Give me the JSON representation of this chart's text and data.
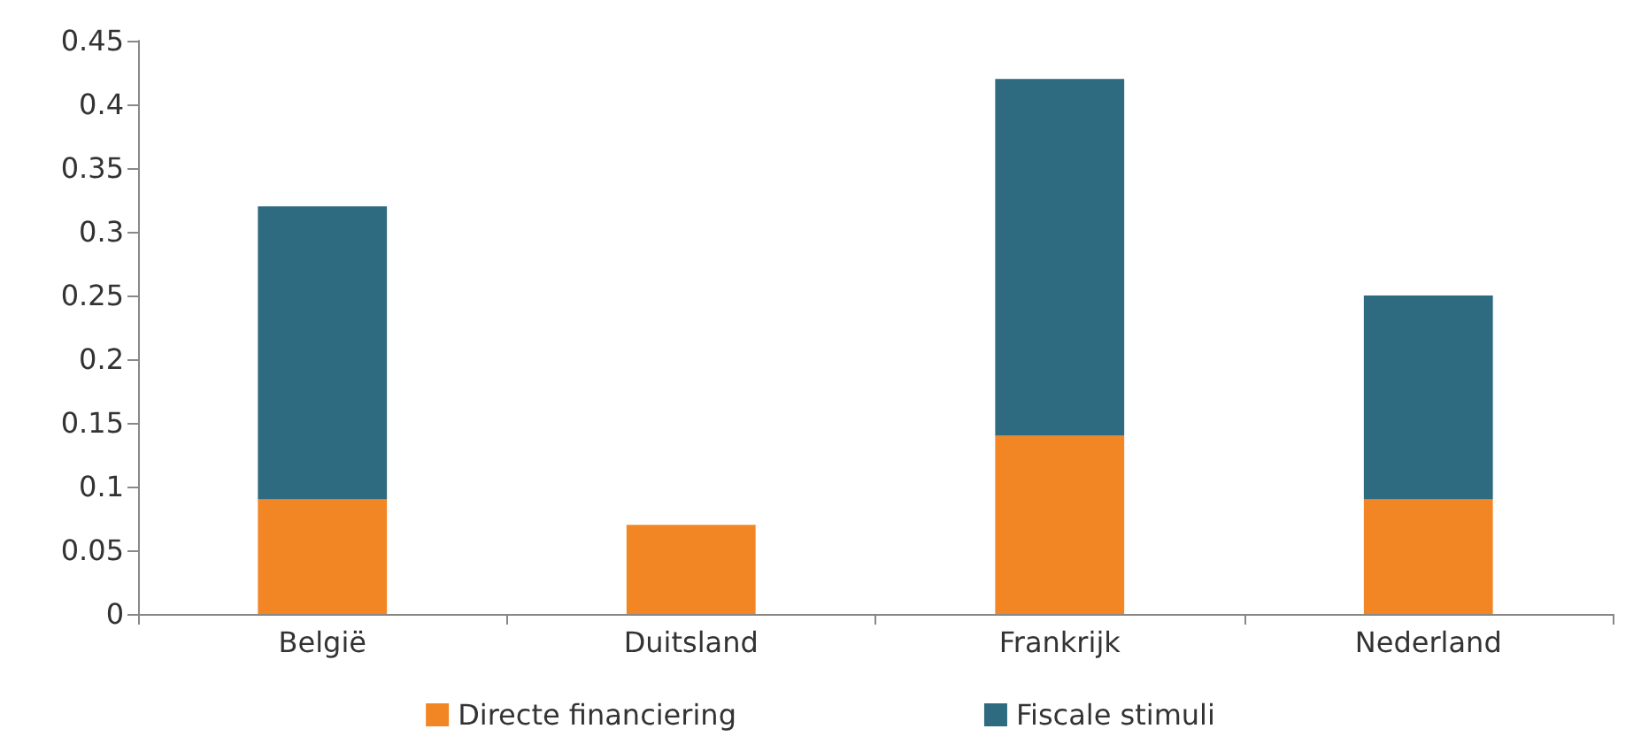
{
  "chart_data": {
    "type": "bar",
    "stacked": true,
    "categories": [
      "België",
      "Duitsland",
      "Frankrijk",
      "Nederland"
    ],
    "series": [
      {
        "name": "Directe financiering",
        "color": "#f28524",
        "values": [
          0.09,
          0.07,
          0.14,
          0.09
        ]
      },
      {
        "name": "Fiscale stimuli",
        "color": "#2e6a80",
        "values": [
          0.23,
          null,
          0.28,
          0.16
        ]
      }
    ],
    "ylim": [
      0,
      0.45
    ],
    "yticks": [
      0,
      0.05,
      0.1,
      0.15,
      0.2,
      0.25,
      0.3,
      0.35,
      0.4,
      0.45
    ],
    "grid": false,
    "legend": "bottom"
  }
}
